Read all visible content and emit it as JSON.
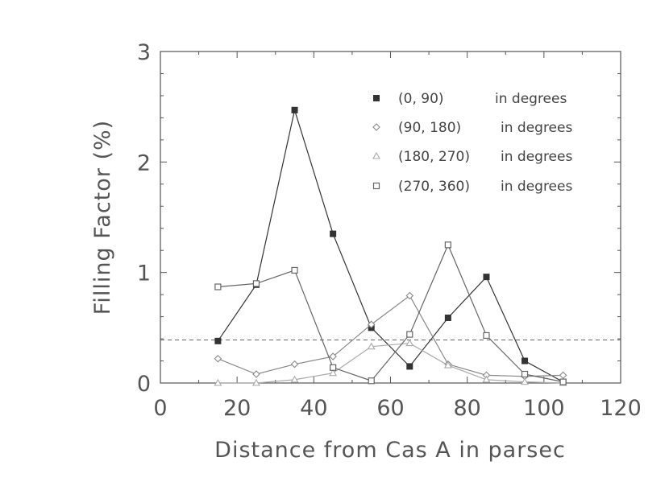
{
  "chart_data": {
    "type": "line",
    "xlabel": "Distance from Cas A in parsec",
    "ylabel": "Filling Factor (%)",
    "xlim": [
      0,
      120
    ],
    "ylim": [
      0,
      3
    ],
    "xticks": [
      0,
      20,
      40,
      60,
      80,
      100,
      120
    ],
    "yticks": [
      0,
      1,
      2,
      3
    ],
    "x_tick_labels": [
      "0",
      "20",
      "40",
      "60",
      "80",
      "100",
      "120"
    ],
    "y_tick_labels": [
      "0",
      "1",
      "2",
      "3"
    ],
    "grid": false,
    "legend_placement": "top-right",
    "reference_line": {
      "y": 0.39,
      "style": "dashed"
    },
    "series": [
      {
        "name": "(0, 90)",
        "suffix": "in degrees",
        "marker": "filled-square",
        "color": "#333333",
        "x": [
          15,
          25,
          35,
          45,
          55,
          65,
          75,
          85,
          95,
          105
        ],
        "y": [
          0.38,
          0.89,
          2.47,
          1.35,
          0.5,
          0.15,
          0.59,
          0.96,
          0.2,
          0.01
        ]
      },
      {
        "name": "(90, 180)",
        "suffix": "in degrees",
        "marker": "diamond",
        "color": "#888888",
        "x": [
          15,
          25,
          35,
          45,
          55,
          65,
          75,
          85,
          95,
          105
        ],
        "y": [
          0.22,
          0.08,
          0.17,
          0.24,
          0.53,
          0.79,
          0.17,
          0.07,
          0.06,
          0.07
        ]
      },
      {
        "name": "(180, 270)",
        "suffix": "in degrees",
        "marker": "triangle",
        "color": "#aaaaaa",
        "x": [
          15,
          25,
          35,
          45,
          55,
          65,
          75,
          85,
          95,
          105
        ],
        "y": [
          0.0,
          0.0,
          0.03,
          0.09,
          0.33,
          0.36,
          0.16,
          0.03,
          0.01,
          0.0
        ]
      },
      {
        "name": "(270, 360)",
        "suffix": "in degrees",
        "marker": "open-square",
        "color": "#666666",
        "x": [
          15,
          25,
          35,
          45,
          55,
          65,
          75,
          85,
          95,
          105
        ],
        "y": [
          0.87,
          0.9,
          1.02,
          0.14,
          0.02,
          0.44,
          1.25,
          0.43,
          0.08,
          0.01
        ]
      }
    ]
  }
}
